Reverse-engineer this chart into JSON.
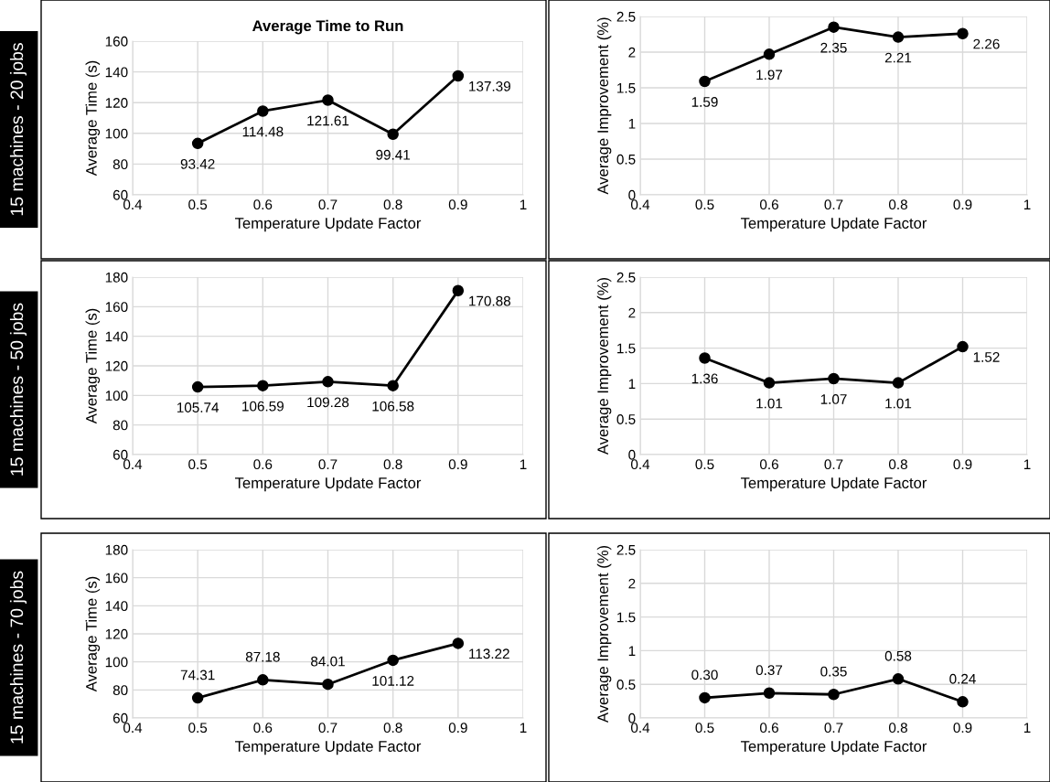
{
  "chart_data": [
    {
      "type": "line",
      "title": "Average Time to Run",
      "xlabel": "Temperature Update Factor",
      "ylabel": "Average Time (s)",
      "annotations": [
        "15 machines - 20 jobs"
      ],
      "x": [
        0.5,
        0.6,
        0.7,
        0.8,
        0.9
      ],
      "series": [
        {
          "color": "#000000",
          "values": [
            93.42,
            114.48,
            121.61,
            99.41,
            137.39
          ],
          "value_labels": [
            "93.42",
            "114.48",
            "121.61",
            "99.41",
            "137.39"
          ]
        }
      ],
      "xlim": [
        0.4,
        1
      ],
      "xticks": [
        0.4,
        0.5,
        0.6,
        0.7,
        0.8,
        0.9,
        1
      ],
      "ylim": [
        60,
        160
      ],
      "yticks": [
        60,
        80,
        100,
        120,
        140,
        160
      ],
      "grid": true,
      "marker": "circle",
      "line_style": "solid"
    },
    {
      "type": "line",
      "xlabel": "Temperature Update Factor",
      "ylabel": "Average Improvement (%)",
      "x": [
        0.5,
        0.6,
        0.7,
        0.8,
        0.9
      ],
      "series": [
        {
          "color": "#000000",
          "values": [
            1.59,
            1.97,
            2.35,
            2.21,
            2.26
          ],
          "value_labels": [
            "1.59",
            "1.97",
            "2.35",
            "2.21",
            "2.26"
          ]
        }
      ],
      "xlim": [
        0.4,
        1
      ],
      "xticks": [
        0.4,
        0.5,
        0.6,
        0.7,
        0.8,
        0.9,
        1
      ],
      "ylim": [
        0,
        2.5
      ],
      "yticks": [
        0,
        0.5,
        1,
        1.5,
        2,
        2.5
      ],
      "grid": true,
      "marker": "circle",
      "line_style": "solid"
    },
    {
      "type": "line",
      "xlabel": "Temperature Update Factor",
      "ylabel": "Average Time (s)",
      "annotations": [
        "15 machines - 50 jobs"
      ],
      "x": [
        0.5,
        0.6,
        0.7,
        0.8,
        0.9
      ],
      "series": [
        {
          "color": "#000000",
          "values": [
            105.74,
            106.59,
            109.28,
            106.58,
            170.88
          ],
          "value_labels": [
            "105.74",
            "106.59",
            "109.28",
            "106.58",
            "170.88"
          ]
        }
      ],
      "xlim": [
        0.4,
        1
      ],
      "xticks": [
        0.4,
        0.5,
        0.6,
        0.7,
        0.8,
        0.9,
        1
      ],
      "ylim": [
        60,
        180
      ],
      "yticks": [
        60,
        80,
        100,
        120,
        140,
        160,
        180
      ],
      "grid": true,
      "marker": "circle",
      "line_style": "solid"
    },
    {
      "type": "line",
      "xlabel": "Temperature Update Factor",
      "ylabel": "Average Improvement (%)",
      "x": [
        0.5,
        0.6,
        0.7,
        0.8,
        0.9
      ],
      "series": [
        {
          "color": "#000000",
          "values": [
            1.36,
            1.01,
            1.07,
            1.01,
            1.52
          ],
          "value_labels": [
            "1.36",
            "1.01",
            "1.07",
            "1.01",
            "1.52"
          ]
        }
      ],
      "xlim": [
        0.4,
        1
      ],
      "xticks": [
        0.4,
        0.5,
        0.6,
        0.7,
        0.8,
        0.9,
        1
      ],
      "ylim": [
        0,
        2.5
      ],
      "yticks": [
        0,
        0.5,
        1,
        1.5,
        2,
        2.5
      ],
      "grid": true,
      "marker": "circle",
      "line_style": "solid"
    },
    {
      "type": "line",
      "xlabel": "Temperature Update Factor",
      "ylabel": "Average Time (s)",
      "annotations": [
        "15 machines - 70 jobs"
      ],
      "x": [
        0.5,
        0.6,
        0.7,
        0.8,
        0.9
      ],
      "series": [
        {
          "color": "#000000",
          "values": [
            74.31,
            87.18,
            84.01,
            101.12,
            113.22
          ],
          "value_labels": [
            "74.31",
            "87.18",
            "84.01",
            "101.12",
            "113.22"
          ]
        }
      ],
      "xlim": [
        0.4,
        1
      ],
      "xticks": [
        0.4,
        0.5,
        0.6,
        0.7,
        0.8,
        0.9,
        1
      ],
      "ylim": [
        60,
        180
      ],
      "yticks": [
        60,
        80,
        100,
        120,
        140,
        160,
        180
      ],
      "grid": true,
      "marker": "circle",
      "line_style": "solid"
    },
    {
      "type": "line",
      "xlabel": "Temperature Update Factor",
      "ylabel": "Average Improvement (%)",
      "x": [
        0.5,
        0.6,
        0.7,
        0.8,
        0.9
      ],
      "series": [
        {
          "color": "#000000",
          "values": [
            0.3,
            0.37,
            0.35,
            0.58,
            0.24
          ],
          "value_labels": [
            "0.30",
            "0.37",
            "0.35",
            "0.58",
            "0.24"
          ]
        }
      ],
      "xlim": [
        0.4,
        1
      ],
      "xticks": [
        0.4,
        0.5,
        0.6,
        0.7,
        0.8,
        0.9,
        1
      ],
      "ylim": [
        0,
        2.5
      ],
      "yticks": [
        0,
        0.5,
        1,
        1.5,
        2,
        2.5
      ],
      "grid": true,
      "marker": "circle",
      "line_style": "solid"
    }
  ]
}
